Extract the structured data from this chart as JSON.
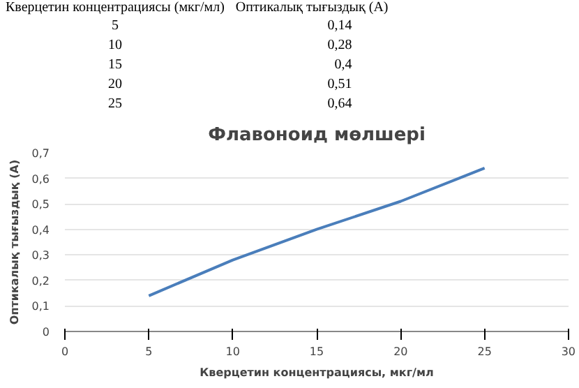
{
  "chart_data": {
    "type": "line",
    "title": "Флавоноид мөлшері",
    "xlabel": "Кверцетин концентрациясы, мкг/мл",
    "ylabel": "Оптикалық тығыздық (А)",
    "annotations": [
      "Кверцетин концентрациясы (мкг/мл)",
      "Оптикалық тығыздық (A)",
      "5",
      "0,14",
      "10",
      "0,28",
      "15",
      "0,4",
      "20",
      "0,51",
      "25",
      "0,64"
    ],
    "x": [
      5,
      10,
      15,
      20,
      25
    ],
    "series": [
      {
        "color": "#4a7ebb",
        "values": [
          0.14,
          0.28,
          0.4,
          0.51,
          0.64
        ]
      }
    ],
    "xlim": [
      0,
      30
    ],
    "xticks": [
      0,
      5,
      10,
      15,
      20,
      25,
      30
    ],
    "ylim": [
      0,
      0.7
    ],
    "yticks": [
      0,
      {
        "value": 0.1,
        "label": "0,1"
      },
      {
        "value": 0.2,
        "label": "0,2"
      },
      {
        "value": 0.3,
        "label": "0,3"
      },
      {
        "value": 0.4,
        "label": "0,4"
      },
      {
        "value": 0.5,
        "label": "0,5"
      },
      {
        "value": 0.6,
        "label": "0,6"
      },
      {
        "value": 0.7,
        "label": "0,7"
      }
    ],
    "grid": "y",
    "marker": "none",
    "line_style": "solid"
  }
}
